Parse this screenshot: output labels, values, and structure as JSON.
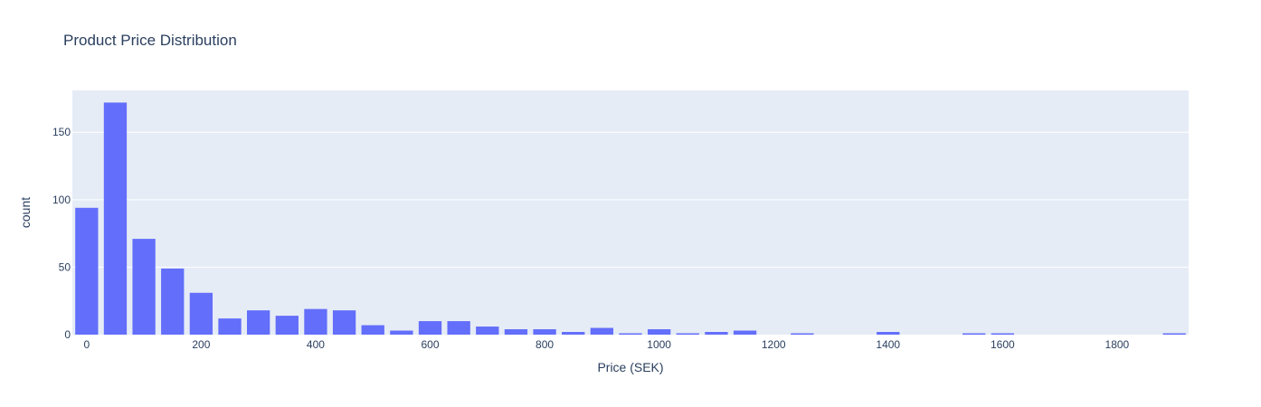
{
  "chart_data": {
    "type": "bar",
    "title": "Product Price Distribution",
    "xlabel": "Price (SEK)",
    "ylabel": "count",
    "bin_width": 50,
    "x": [
      0,
      50,
      100,
      150,
      200,
      250,
      300,
      350,
      400,
      450,
      500,
      550,
      600,
      650,
      700,
      750,
      800,
      850,
      900,
      950,
      1000,
      1050,
      1100,
      1150,
      1200,
      1250,
      1300,
      1350,
      1400,
      1450,
      1500,
      1550,
      1600,
      1650,
      1700,
      1750,
      1800,
      1850,
      1900
    ],
    "values": [
      94,
      172,
      71,
      49,
      31,
      12,
      18,
      14,
      19,
      18,
      7,
      3,
      10,
      10,
      6,
      4,
      4,
      2,
      5,
      1,
      4,
      1,
      2,
      3,
      0,
      1,
      0,
      0,
      2,
      0,
      0,
      1,
      1,
      0,
      0,
      0,
      0,
      0,
      1
    ],
    "xlim": [
      -25,
      1925
    ],
    "ylim": [
      0,
      181
    ],
    "x_ticks": [
      0,
      200,
      400,
      600,
      800,
      1000,
      1200,
      1400,
      1600,
      1800
    ],
    "y_ticks": [
      0,
      50,
      100,
      150
    ],
    "bar_color": "#636efa",
    "plot_bg": "#e5ecf6",
    "grid_color": "#ffffff",
    "grid": true
  }
}
